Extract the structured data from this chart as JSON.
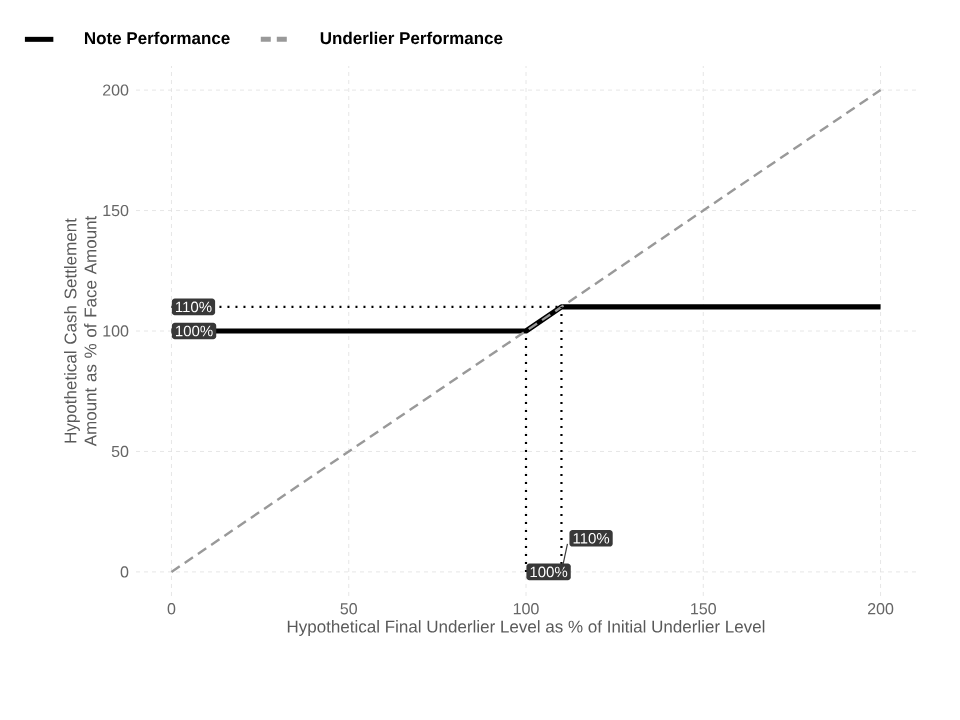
{
  "chart_data": {
    "type": "line",
    "xlabel": "Hypothetical Final Underlier Level as % of Initial Underlier Level",
    "ylabel": "Hypothetical Cash Settlement Amount as % of Face Amount",
    "xlim": [
      -10,
      210
    ],
    "ylim": [
      -10,
      210
    ],
    "xticks": [
      0,
      50,
      100,
      150,
      200
    ],
    "yticks": [
      0,
      50,
      100,
      150,
      200
    ],
    "grid": true,
    "legend": "top",
    "series": [
      {
        "name": "Note Performance",
        "color": "#000000",
        "line_style": "solid",
        "x": [
          0,
          100,
          110,
          200
        ],
        "values": [
          100,
          100,
          110,
          110
        ]
      },
      {
        "name": "Underlier Performance",
        "color": "#999999",
        "line_style": "dashed",
        "x": [
          0,
          200
        ],
        "values": [
          0,
          200
        ]
      },
      {
        "color": "#000000",
        "line_style": "dotted",
        "x": [
          0,
          110
        ],
        "values": [
          110,
          110
        ]
      },
      {
        "color": "#000000",
        "line_style": "dotted",
        "x": [
          100,
          100
        ],
        "values": [
          0,
          100
        ]
      },
      {
        "color": "#000000",
        "line_style": "dotted",
        "x": [
          110,
          110
        ],
        "values": [
          0,
          110
        ]
      }
    ],
    "annotations": [
      {
        "text": "110%",
        "x": 0,
        "y": 110
      },
      {
        "text": "100%",
        "x": 0,
        "y": 100
      },
      {
        "text": "100%",
        "x": 100,
        "y": 0
      },
      {
        "text": "110%",
        "x": 110,
        "y": 0
      }
    ]
  }
}
